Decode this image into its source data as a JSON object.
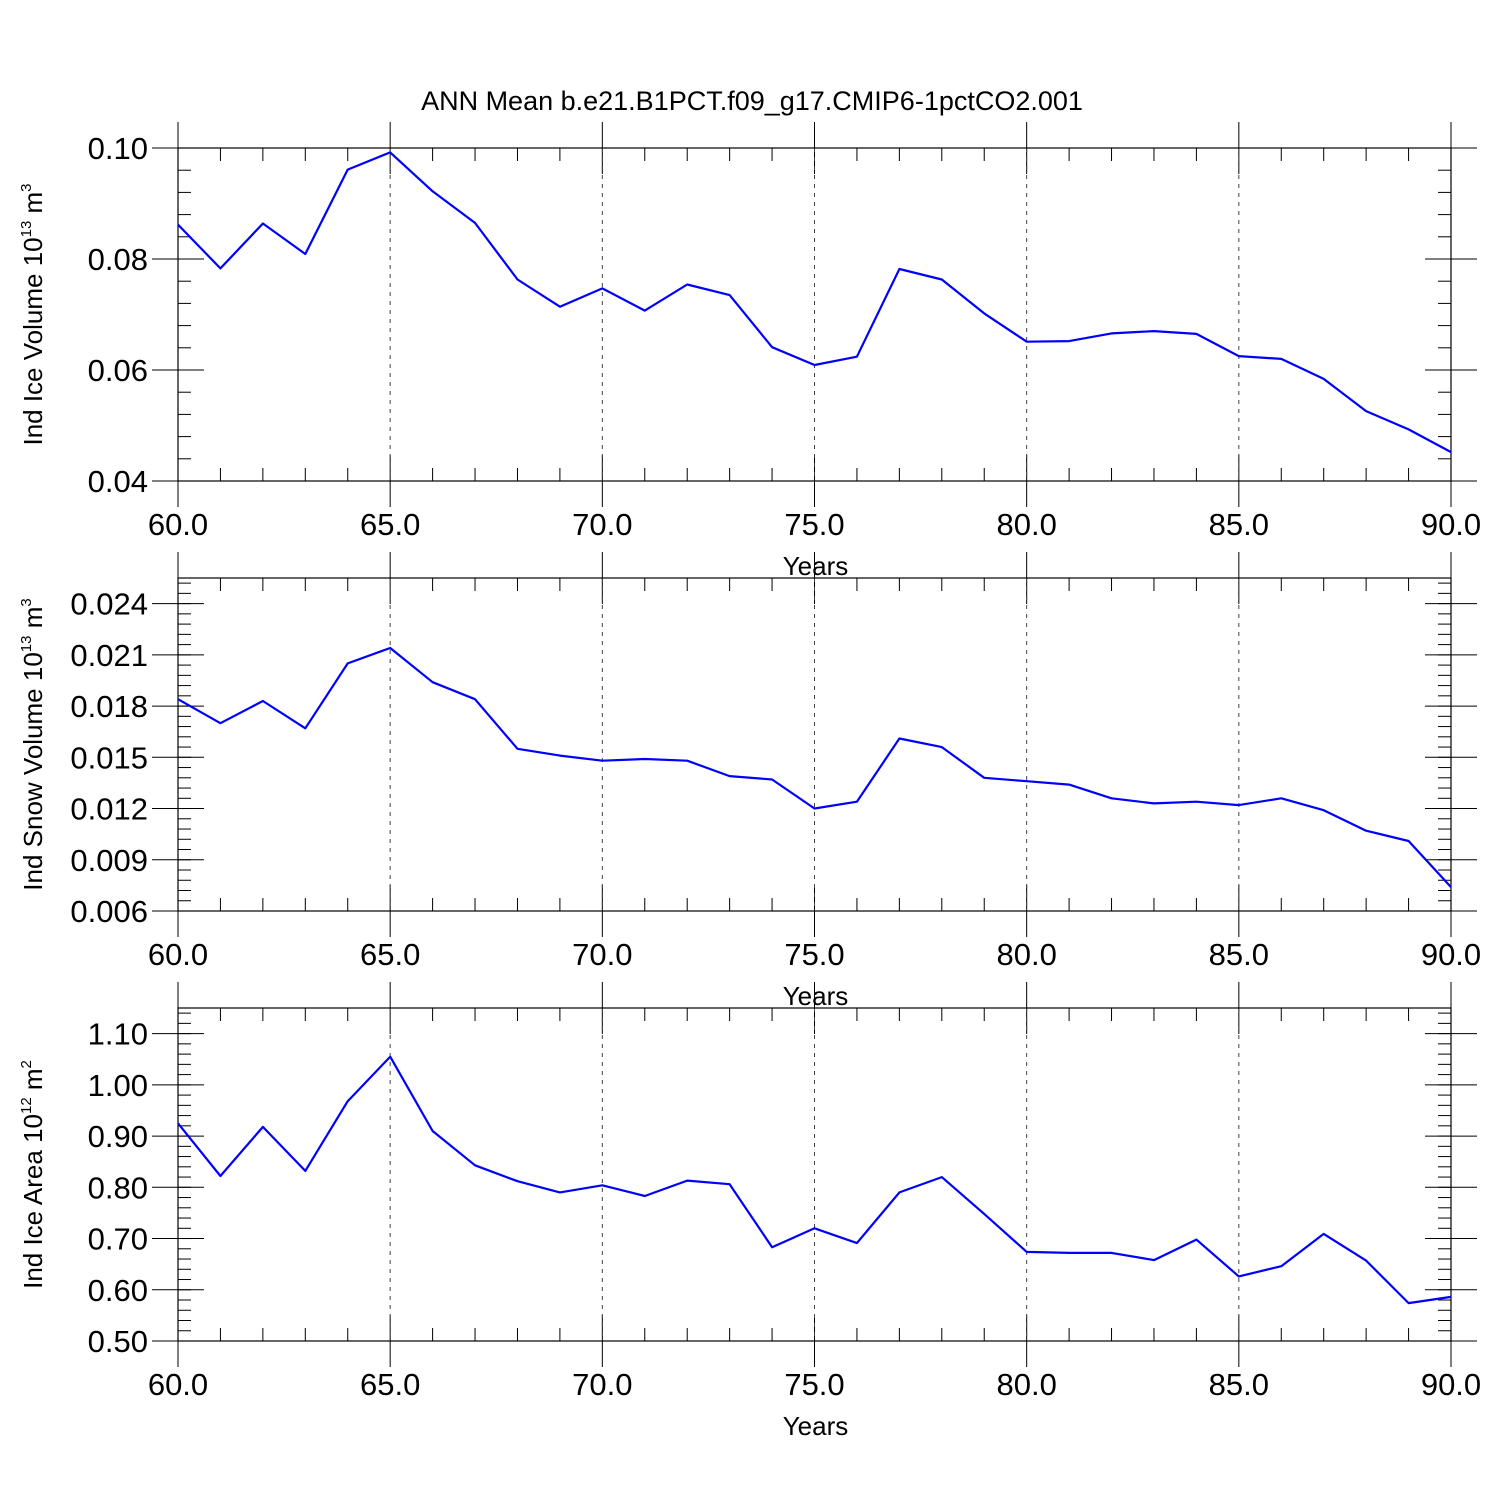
{
  "chart_data": [
    {
      "type": "line",
      "title": "ANN Mean b.e21.B1PCT.f09_g17.CMIP6-1pctCO2.001",
      "xlabel": "Years",
      "ylabel": {
        "main": "Ind Ice Volume 10",
        "exp": "13",
        "unit_base": " m",
        "unit_exp": "3"
      },
      "xlim": [
        60,
        90
      ],
      "ylim": [
        0.04,
        0.1
      ],
      "xticks": [
        "60.0",
        "65.0",
        "70.0",
        "75.0",
        "80.0",
        "85.0",
        "90.0"
      ],
      "xtick_values": [
        60,
        65,
        70,
        75,
        80,
        85,
        90
      ],
      "yticks": [
        "0.04",
        "0.06",
        "0.08",
        "0.10"
      ],
      "ytick_values": [
        0.04,
        0.06,
        0.08,
        0.1
      ],
      "grid": "dashed vertical at major x ticks",
      "series": [
        {
          "name": "Ind Ice Volume",
          "color": "#0000ff",
          "x": [
            60,
            61,
            62,
            63,
            64,
            65,
            66,
            67,
            68,
            69,
            70,
            71,
            72,
            73,
            74,
            75,
            76,
            77,
            78,
            79,
            80,
            81,
            82,
            83,
            84,
            85,
            86,
            87,
            88,
            89,
            90
          ],
          "values": [
            0.0862,
            0.0783,
            0.0864,
            0.0809,
            0.0961,
            0.0992,
            0.0922,
            0.0865,
            0.0763,
            0.0714,
            0.0747,
            0.0707,
            0.0754,
            0.0735,
            0.0641,
            0.0609,
            0.0624,
            0.0782,
            0.0763,
            0.0702,
            0.0651,
            0.0652,
            0.0666,
            0.067,
            0.0665,
            0.0625,
            0.062,
            0.0584,
            0.0526,
            0.0493,
            0.0452
          ]
        }
      ]
    },
    {
      "type": "line",
      "xlabel": "Years",
      "ylabel": {
        "main": "Ind Snow Volume 10",
        "exp": "13",
        "unit_base": " m",
        "unit_exp": "3"
      },
      "xlim": [
        60,
        90
      ],
      "ylim": [
        0.006,
        0.0255
      ],
      "xticks": [
        "60.0",
        "65.0",
        "70.0",
        "75.0",
        "80.0",
        "85.0",
        "90.0"
      ],
      "xtick_values": [
        60,
        65,
        70,
        75,
        80,
        85,
        90
      ],
      "yticks": [
        "0.006",
        "0.009",
        "0.012",
        "0.015",
        "0.018",
        "0.021",
        "0.024"
      ],
      "ytick_values": [
        0.006,
        0.009,
        0.012,
        0.015,
        0.018,
        0.021,
        0.024
      ],
      "grid": "dashed vertical at major x ticks",
      "series": [
        {
          "name": "Ind Snow Volume",
          "color": "#0000ff",
          "x": [
            60,
            61,
            62,
            63,
            64,
            65,
            66,
            67,
            68,
            69,
            70,
            71,
            72,
            73,
            74,
            75,
            76,
            77,
            78,
            79,
            80,
            81,
            82,
            83,
            84,
            85,
            86,
            87,
            88,
            89,
            90
          ],
          "values": [
            0.0184,
            0.017,
            0.0183,
            0.0167,
            0.0205,
            0.0214,
            0.0194,
            0.0184,
            0.0155,
            0.0151,
            0.0148,
            0.0149,
            0.0148,
            0.0139,
            0.0137,
            0.012,
            0.0124,
            0.0161,
            0.0156,
            0.0138,
            0.0136,
            0.0134,
            0.0126,
            0.0123,
            0.0124,
            0.0122,
            0.0126,
            0.0119,
            0.0107,
            0.0101,
            0.0074
          ]
        }
      ]
    },
    {
      "type": "line",
      "xlabel": "Years",
      "ylabel": {
        "main": "Ind Ice Area 10",
        "exp": "12",
        "unit_base": " m",
        "unit_exp": "2"
      },
      "xlim": [
        60,
        90
      ],
      "ylim": [
        0.5,
        1.15
      ],
      "xticks": [
        "60.0",
        "65.0",
        "70.0",
        "75.0",
        "80.0",
        "85.0",
        "90.0"
      ],
      "xtick_values": [
        60,
        65,
        70,
        75,
        80,
        85,
        90
      ],
      "yticks": [
        "0.50",
        "0.60",
        "0.70",
        "0.80",
        "0.90",
        "1.00",
        "1.10"
      ],
      "ytick_values": [
        0.5,
        0.6,
        0.7,
        0.8,
        0.9,
        1.0,
        1.1
      ],
      "grid": "dashed vertical at major x ticks",
      "series": [
        {
          "name": "Ind Ice Area",
          "color": "#0000ff",
          "x": [
            60,
            61,
            62,
            63,
            64,
            65,
            66,
            67,
            68,
            69,
            70,
            71,
            72,
            73,
            74,
            75,
            76,
            77,
            78,
            79,
            80,
            81,
            82,
            83,
            84,
            85,
            86,
            87,
            88,
            89,
            90
          ],
          "values": [
            0.925,
            0.822,
            0.918,
            0.832,
            0.968,
            1.055,
            0.91,
            0.843,
            0.812,
            0.79,
            0.804,
            0.783,
            0.813,
            0.806,
            0.683,
            0.72,
            0.691,
            0.79,
            0.82,
            0.748,
            0.674,
            0.672,
            0.672,
            0.658,
            0.698,
            0.626,
            0.646,
            0.709,
            0.657,
            0.574,
            0.586
          ]
        }
      ]
    }
  ]
}
